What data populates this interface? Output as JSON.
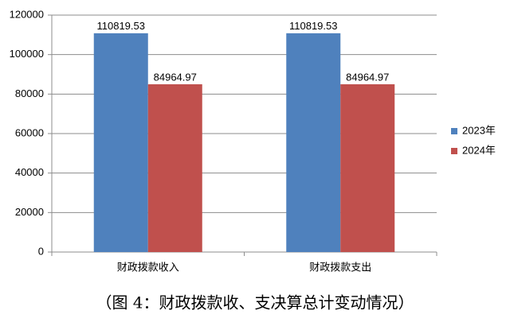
{
  "chart_data": {
    "type": "bar",
    "title": "（图 4：财政拨款收、支决算总计变动情况）",
    "categories": [
      "财政拨款收入",
      "财政拨款支出"
    ],
    "series": [
      {
        "name": "2023年",
        "color": "#4f81bd",
        "values": [
          110819.53,
          110819.53
        ]
      },
      {
        "name": "2024年",
        "color": "#c0504d",
        "values": [
          84964.97,
          84964.97
        ]
      }
    ],
    "ylim": [
      0,
      120000
    ],
    "yticks": [
      0,
      20000,
      40000,
      60000,
      80000,
      100000,
      120000
    ],
    "grid": true,
    "legend": "right"
  }
}
